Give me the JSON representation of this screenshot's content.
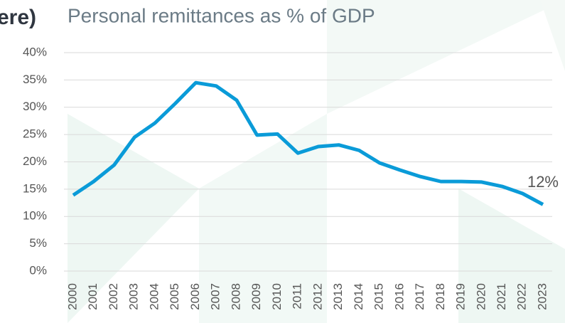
{
  "chart_data": {
    "type": "line",
    "heading_fragment": "ere)",
    "title": "Personal remittances as % of GDP",
    "categories": [
      "2000",
      "2001",
      "2002",
      "2003",
      "2004",
      "2005",
      "2006",
      "2007",
      "2008",
      "2009",
      "2010",
      "2011",
      "2012",
      "2013",
      "2014",
      "2015",
      "2016",
      "2017",
      "2018",
      "2019",
      "2020",
      "2021",
      "2022",
      "2023"
    ],
    "series": [
      {
        "name": "Personal remittances as % of GDP",
        "color": "#0a9bd8",
        "values": [
          13.9,
          16.4,
          19.4,
          24.5,
          27.1,
          30.7,
          34.5,
          33.9,
          31.3,
          24.9,
          25.1,
          21.6,
          22.8,
          23.1,
          22.1,
          19.8,
          18.5,
          17.3,
          16.4,
          16.4,
          16.3,
          15.5,
          14.2,
          12.2
        ],
        "value_labels": [
          null,
          null,
          null,
          null,
          null,
          null,
          null,
          null,
          null,
          null,
          null,
          null,
          null,
          null,
          null,
          null,
          null,
          null,
          null,
          null,
          null,
          null,
          null,
          "12%"
        ]
      }
    ],
    "ylim": [
      0,
      40
    ],
    "yticks": [
      {
        "value": 0,
        "label": "0%"
      },
      {
        "value": 5,
        "label": "5%"
      },
      {
        "value": 10,
        "label": "10%"
      },
      {
        "value": 15,
        "label": "15%"
      },
      {
        "value": 20,
        "label": "20%"
      },
      {
        "value": 25,
        "label": "25%"
      },
      {
        "value": 30,
        "label": "30%"
      },
      {
        "value": 35,
        "label": "35%"
      },
      {
        "value": 40,
        "label": "40%"
      }
    ],
    "grid": true
  }
}
